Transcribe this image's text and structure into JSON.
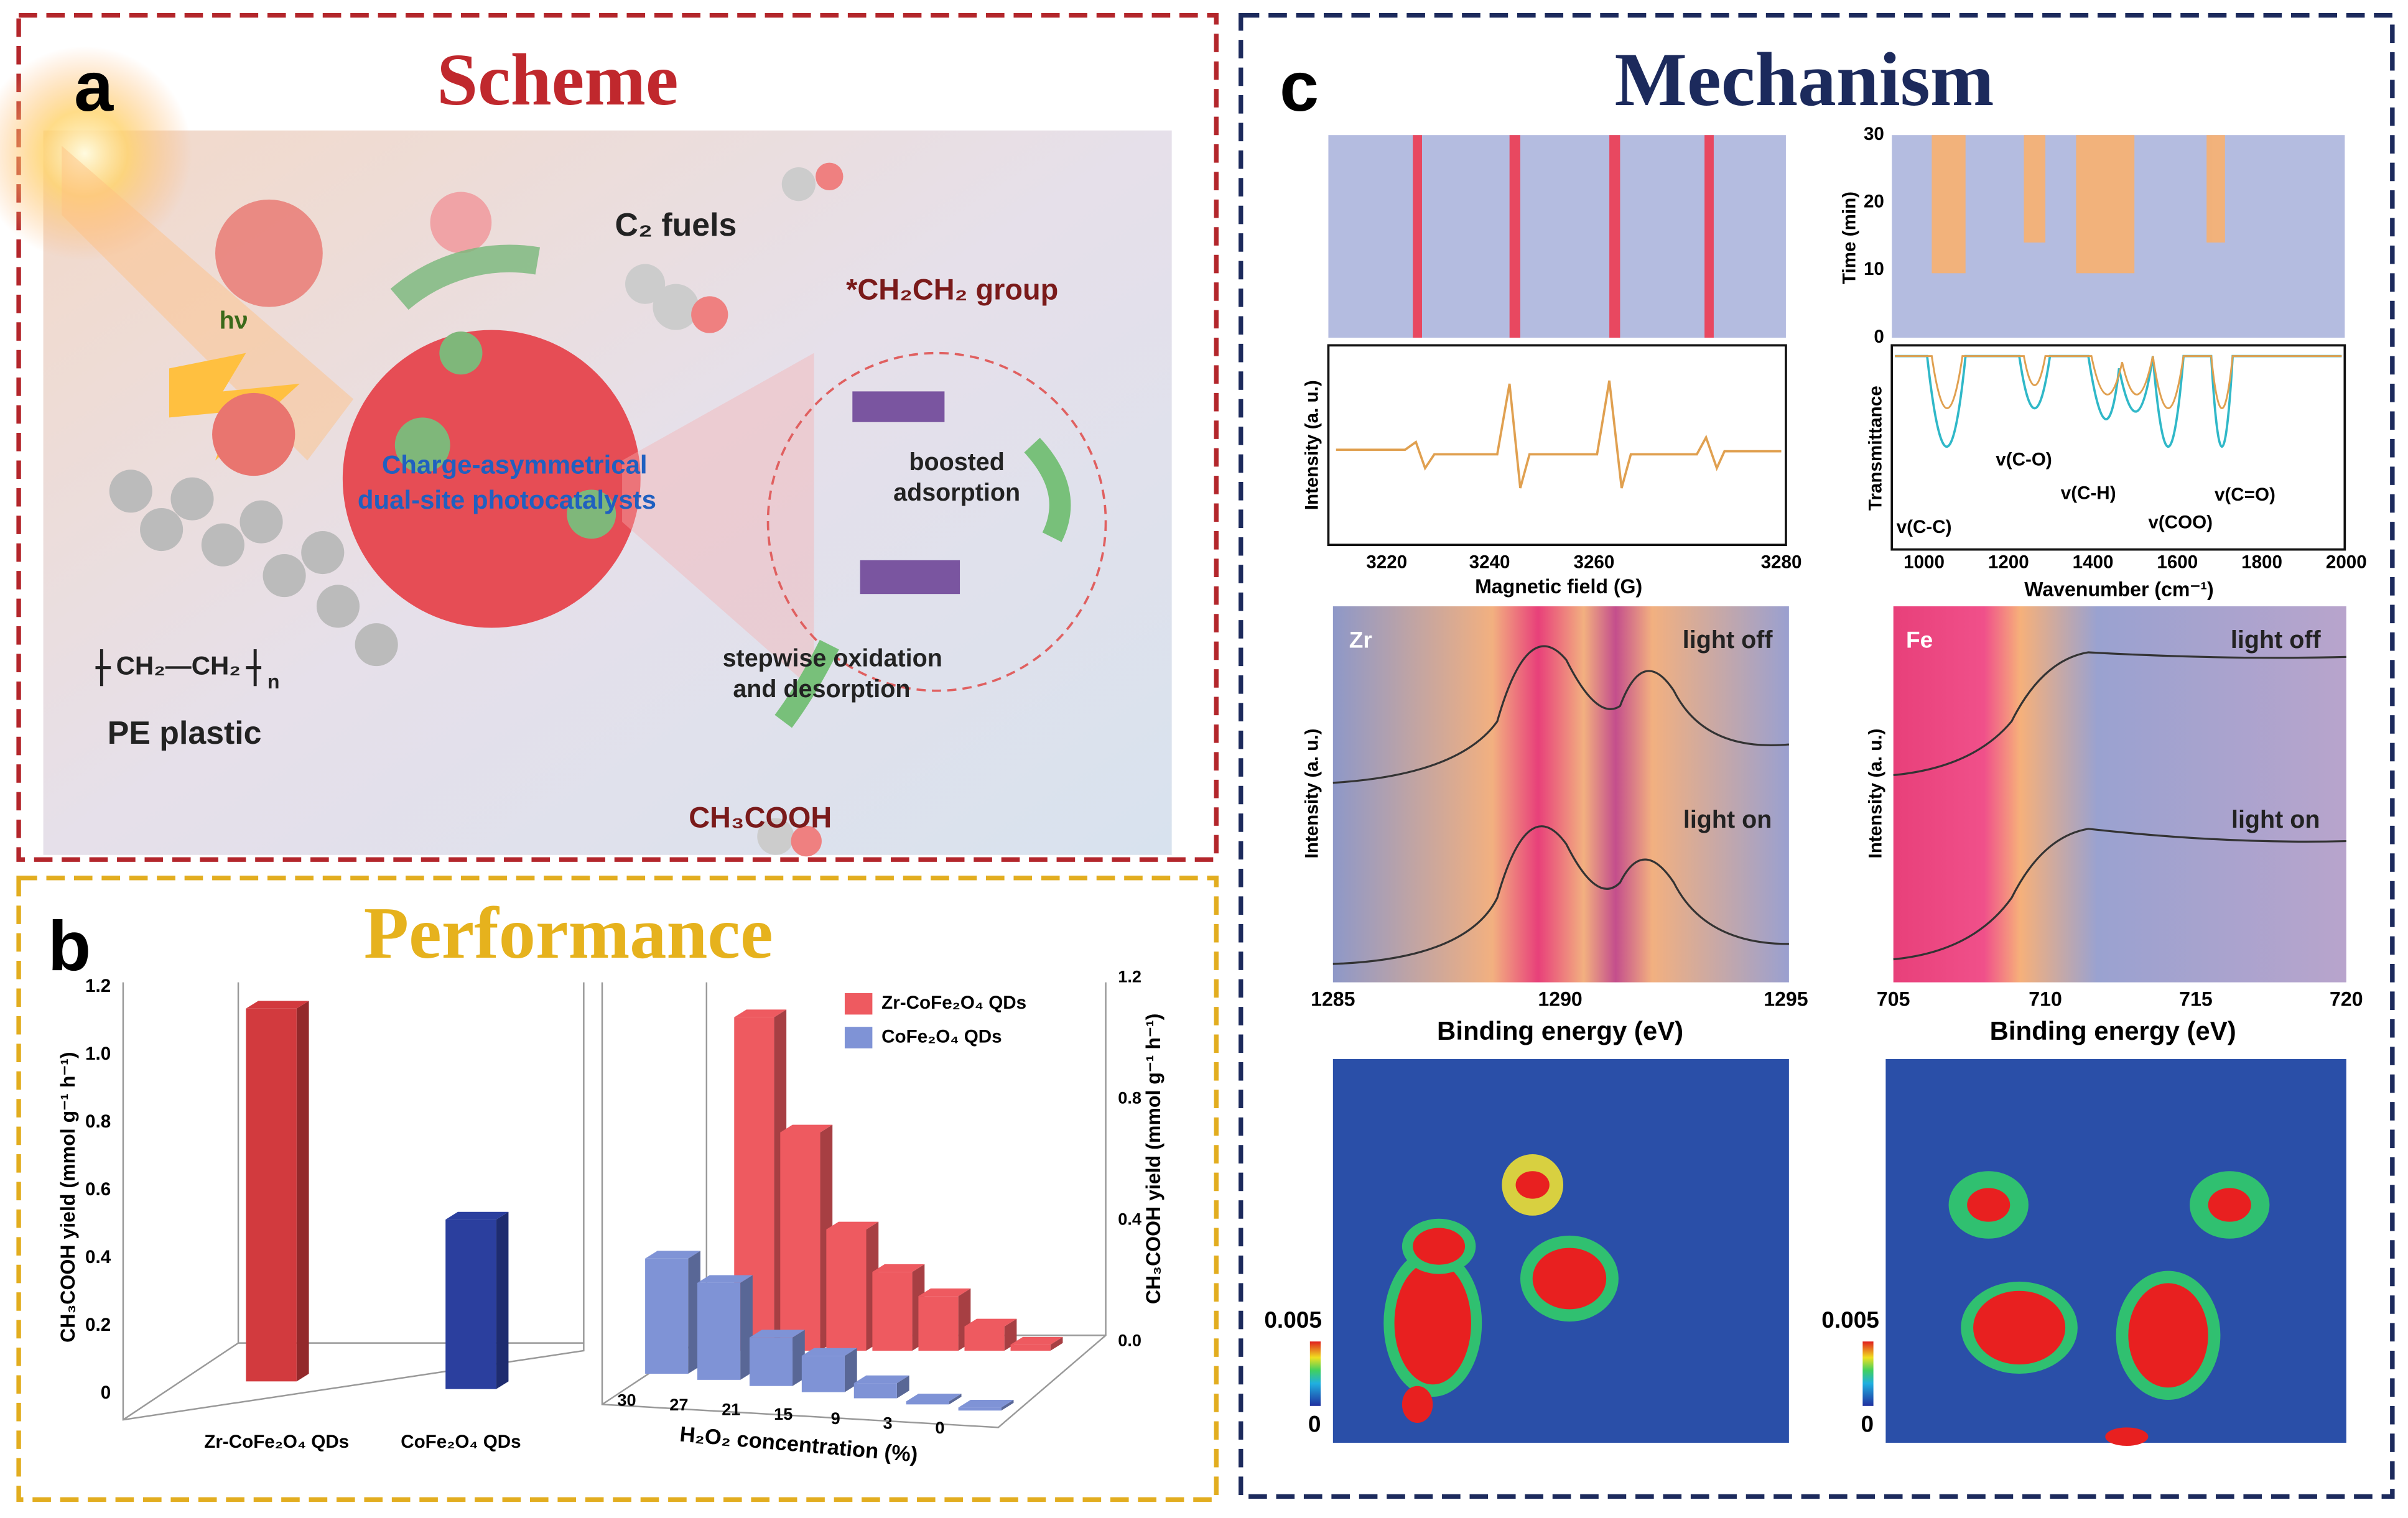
{
  "panel_a": {
    "letter": "a",
    "title": "Scheme",
    "labels": {
      "light": "hν",
      "fuels": "C₂ fuels",
      "group": "*CH₂CH₂ group",
      "catalyst": [
        "Charge-asymmetrical",
        "dual-site photocatalysts"
      ],
      "adsorption": [
        "boosted",
        "adsorption"
      ],
      "oxidation": [
        "stepwise oxidation",
        "and desorption"
      ],
      "polymer": "CH₂—CH₂",
      "polymer_index": "n",
      "plastic": "PE plastic",
      "product": "CH₃COOH"
    }
  },
  "panel_b": {
    "letter": "b",
    "title": "Performance",
    "left_chart": {
      "y_label": "CH₃COOH yield (mmol g⁻¹ h⁻¹)",
      "y_ticks": [
        "0",
        "0.2",
        "0.4",
        "0.6",
        "0.8",
        "1.0",
        "1.2"
      ],
      "categories": [
        "Zr-CoFe₂O₄ QDs",
        "CoFe₂O₄ QDs"
      ],
      "values": [
        1.1,
        0.5
      ],
      "colors": [
        "#d23a3e",
        "#2b3f9e"
      ]
    },
    "right_chart": {
      "y_label": "CH₃COOH yield (mmol g⁻¹ h⁻¹)",
      "y_ticks": [
        "0.0",
        "0.4",
        "0.8",
        "1.2"
      ],
      "x_label": "H₂O₂ concentration (%)",
      "categories": [
        "30",
        "27",
        "21",
        "15",
        "9",
        "3",
        "0"
      ],
      "series": [
        {
          "name": "Zr-CoFe₂O₄ QDs",
          "color": "#ee5a60",
          "values": [
            1.1,
            0.72,
            0.4,
            0.26,
            0.18,
            0.08,
            0.02
          ]
        },
        {
          "name": "CoFe₂O₄ QDs",
          "color": "#7f93d6",
          "values": [
            0.38,
            0.32,
            0.16,
            0.12,
            0.05,
            0.01,
            0.01
          ]
        }
      ]
    }
  },
  "panel_c": {
    "letter": "c",
    "title": "Mechanism",
    "epr": {
      "y_label": "Intensity (a. u.)",
      "x_label": "Magnetic field (G)",
      "x_ticks": [
        "3220",
        "3240",
        "3260",
        "3280"
      ]
    },
    "ftir": {
      "time_label": "Time (min)",
      "time_ticks": [
        "0",
        "10",
        "20",
        "30"
      ],
      "y_label": "Transmittance",
      "x_label": "Wavenumber (cm⁻¹)",
      "x_ticks": [
        "1000",
        "1200",
        "1400",
        "1600",
        "1800",
        "2000"
      ],
      "bands": [
        "v(C-C)",
        "v(C-O)",
        "v(C-H)",
        "v(COO)",
        "v(C=O)"
      ]
    },
    "xps_zr": {
      "element": "Zr",
      "off": "light off",
      "on": "light on",
      "y_label": "Intensity (a. u.)",
      "x_label": "Binding energy (eV)",
      "x_ticks": [
        "1285",
        "1290",
        "1295"
      ]
    },
    "xps_fe": {
      "element": "Fe",
      "off": "light off",
      "on": "light on",
      "y_label": "Intensity (a. u.)",
      "x_label": "Binding energy (eV)",
      "x_ticks": [
        "705",
        "710",
        "715",
        "720"
      ]
    },
    "density_left": {
      "max": "0.005",
      "min": "0"
    },
    "density_right": {
      "max": "0.005",
      "min": "0"
    }
  }
}
